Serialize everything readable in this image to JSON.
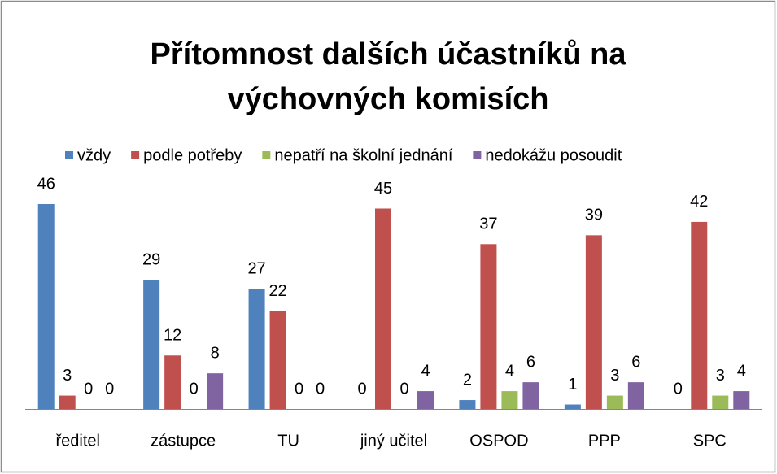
{
  "chart_data": {
    "type": "bar",
    "title": "Přítomnost dalších účastníků na výchovných komisích",
    "categories": [
      "ředitel",
      "zástupce",
      "TU",
      "jiný učitel",
      "OSPOD",
      "PPP",
      "SPC"
    ],
    "series": [
      {
        "name": "vždy",
        "color": "#4f81bd",
        "values": [
          46,
          29,
          27,
          0,
          2,
          1,
          0
        ]
      },
      {
        "name": "podle potřeby",
        "color": "#c0504d",
        "values": [
          3,
          12,
          22,
          45,
          37,
          39,
          42
        ]
      },
      {
        "name": "nepatří na školní jednání",
        "color": "#9bbb59",
        "values": [
          0,
          0,
          0,
          0,
          4,
          3,
          3
        ]
      },
      {
        "name": "nedokážu posoudit",
        "color": "#8064a2",
        "values": [
          0,
          8,
          0,
          4,
          6,
          6,
          4
        ]
      }
    ],
    "legend": "top"
  }
}
